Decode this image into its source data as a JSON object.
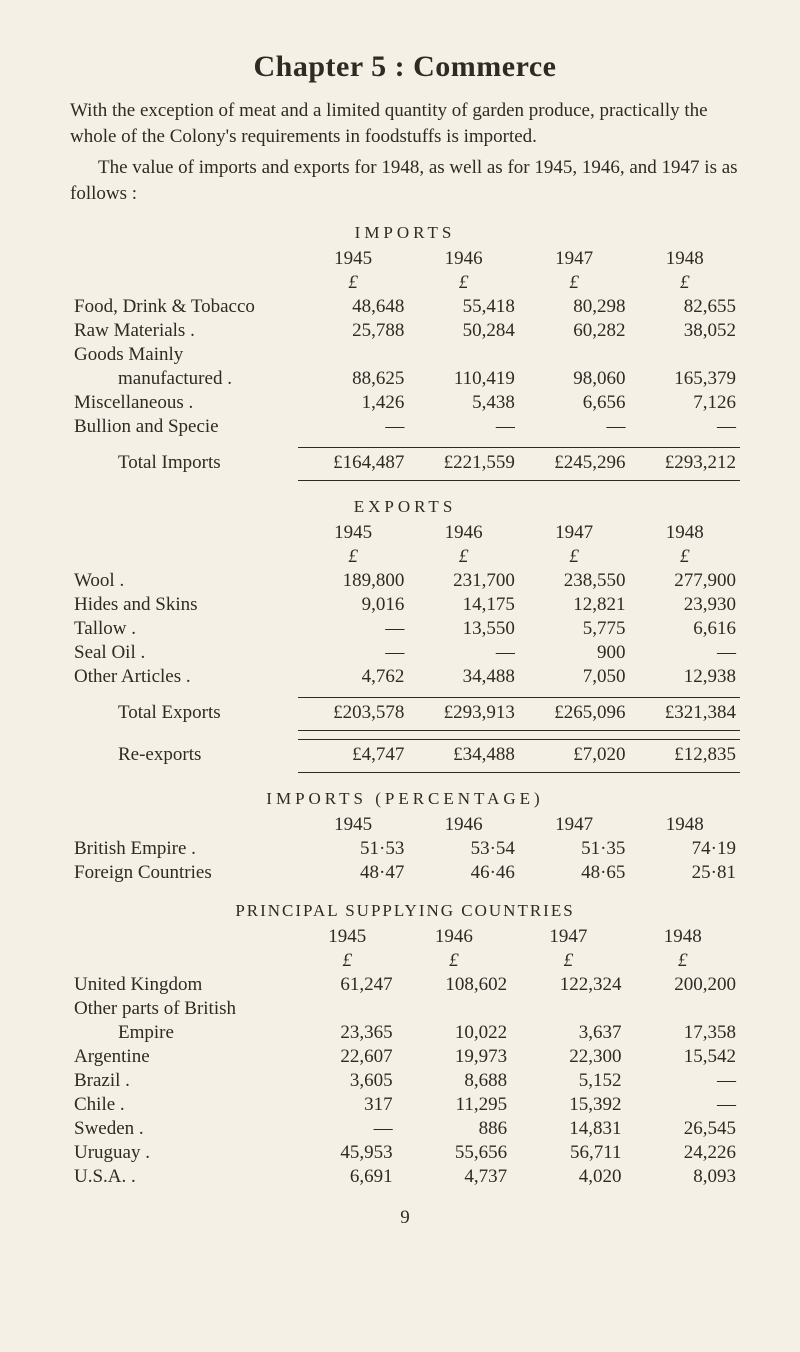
{
  "chapter_title": "Chapter 5 :  Commerce",
  "para1": "With the exception of meat and a limited quantity of garden produce, practically the whole of the Colony's requirements in foodstuffs is imported.",
  "para2": "The value of imports and exports for 1948, as well as for 1945, 1946, and 1947 is as follows :",
  "imports": {
    "heading": "IMPORTS",
    "years": [
      "1945",
      "1946",
      "1947",
      "1948"
    ],
    "pound": "£",
    "rows": [
      {
        "label": "Food, Drink & Tobacco",
        "v": [
          "48,648",
          "55,418",
          "80,298",
          "82,655"
        ]
      },
      {
        "label": "Raw Materials  .",
        "v": [
          "25,788",
          "50,284",
          "60,282",
          "38,052"
        ]
      },
      {
        "label": "Goods Mainly",
        "v": [
          "",
          "",
          "",
          ""
        ]
      },
      {
        "label": "manufactured .",
        "indent": true,
        "v": [
          "88,625",
          "110,419",
          "98,060",
          "165,379"
        ]
      },
      {
        "label": "Miscellaneous  .",
        "v": [
          "1,426",
          "5,438",
          "6,656",
          "7,126"
        ]
      },
      {
        "label": "Bullion and Specie",
        "v": [
          "—",
          "—",
          "—",
          "—"
        ]
      }
    ],
    "total": {
      "label": "Total Imports",
      "v": [
        "£164,487",
        "£221,559",
        "£245,296",
        "£293,212"
      ]
    }
  },
  "exports": {
    "heading": "EXPORTS",
    "years": [
      "1945",
      "1946",
      "1947",
      "1948"
    ],
    "pound": "£",
    "rows": [
      {
        "label": "Wool   .",
        "v": [
          "189,800",
          "231,700",
          "238,550",
          "277,900"
        ]
      },
      {
        "label": "Hides and Skins",
        "v": [
          "9,016",
          "14,175",
          "12,821",
          "23,930"
        ]
      },
      {
        "label": "Tallow   .",
        "v": [
          "—",
          "13,550",
          "5,775",
          "6,616"
        ]
      },
      {
        "label": "Seal Oil  .",
        "v": [
          "—",
          "—",
          "900",
          "—"
        ]
      },
      {
        "label": "Other Articles  .",
        "v": [
          "4,762",
          "34,488",
          "7,050",
          "12,938"
        ]
      }
    ],
    "total": {
      "label": "Total Exports",
      "v": [
        "£203,578",
        "£293,913",
        "£265,096",
        "£321,384"
      ]
    },
    "reexports": {
      "label": "Re-exports",
      "v": [
        "£4,747",
        "£34,488",
        "£7,020",
        "£12,835"
      ]
    }
  },
  "percentage": {
    "heading": "IMPORTS  (PERCENTAGE)",
    "years": [
      "1945",
      "1946",
      "1947",
      "1948"
    ],
    "rows": [
      {
        "label": "British Empire  .",
        "v": [
          "51·53",
          "53·54",
          "51·35",
          "74·19"
        ]
      },
      {
        "label": "Foreign Countries",
        "v": [
          "48·47",
          "46·46",
          "48·65",
          "25·81"
        ]
      }
    ]
  },
  "supplying": {
    "heading": "PRINCIPAL  SUPPLYING  COUNTRIES",
    "years": [
      "1945",
      "1946",
      "1947",
      "1948"
    ],
    "pound": "£",
    "rows": [
      {
        "label": "United Kingdom",
        "v": [
          "61,247",
          "108,602",
          "122,324",
          "200,200"
        ]
      },
      {
        "label": "Other parts of British",
        "v": [
          "",
          "",
          "",
          ""
        ]
      },
      {
        "label": "Empire",
        "indent": true,
        "v": [
          "23,365",
          "10,022",
          "3,637",
          "17,358"
        ]
      },
      {
        "label": "Argentine",
        "v": [
          "22,607",
          "19,973",
          "22,300",
          "15,542"
        ]
      },
      {
        "label": "Brazil   .",
        "v": [
          "3,605",
          "8,688",
          "5,152",
          "—"
        ]
      },
      {
        "label": "Chile   .",
        "v": [
          "317",
          "11,295",
          "15,392",
          "—"
        ]
      },
      {
        "label": "Sweden   .",
        "v": [
          "—",
          "886",
          "14,831",
          "26,545"
        ]
      },
      {
        "label": "Uruguay  .",
        "v": [
          "45,953",
          "55,656",
          "56,711",
          "24,226"
        ]
      },
      {
        "label": "U.S.A.   .",
        "v": [
          "6,691",
          "4,737",
          "4,020",
          "8,093"
        ]
      }
    ]
  },
  "page_number": "9"
}
